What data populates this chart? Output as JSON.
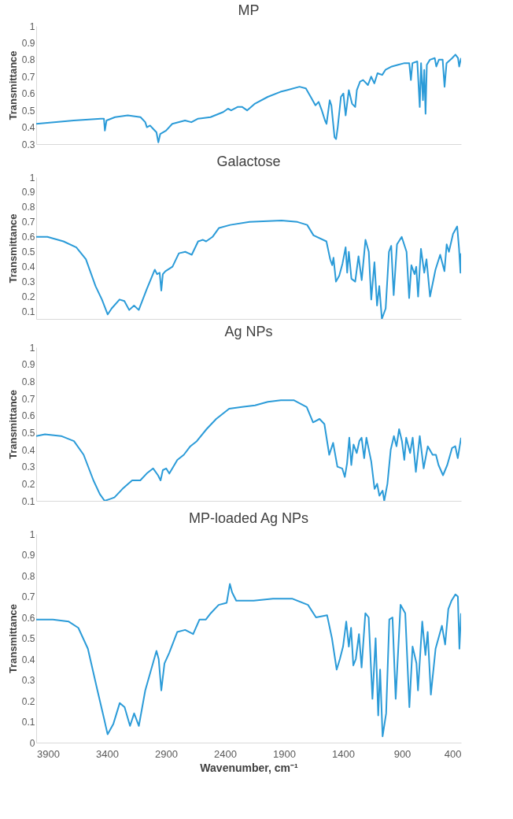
{
  "chart_data": [
    {
      "type": "line",
      "title": "MP",
      "ylabel": "Transmittance",
      "xlim": [
        4000,
        400
      ],
      "ylim": [
        0.3,
        1
      ],
      "yticks": [
        0.3,
        0.4,
        0.5,
        0.6,
        0.7,
        0.8,
        0.9,
        1
      ],
      "grid": false,
      "tick_labels": "y",
      "x": [
        4000,
        3682,
        3453,
        3426,
        3418,
        3404,
        3332,
        3224,
        3116,
        3076,
        3062,
        3035,
        3008,
        2981,
        2965,
        2949,
        2900,
        2847,
        2739,
        2685,
        2631,
        2523,
        2415,
        2375,
        2348,
        2294,
        2254,
        2213,
        2146,
        2038,
        1930,
        1876,
        1769,
        1715,
        1674,
        1634,
        1607,
        1580,
        1553,
        1540,
        1513,
        1499,
        1472,
        1459,
        1445,
        1418,
        1397,
        1378,
        1351,
        1324,
        1297,
        1283,
        1256,
        1230,
        1189,
        1162,
        1135,
        1108,
        1068,
        1041,
        987,
        933,
        879,
        839,
        825,
        812,
        771,
        750,
        739,
        723,
        712,
        701,
        690,
        664,
        623,
        610,
        588,
        556,
        540,
        523,
        475,
        448,
        426,
        416,
        400
      ],
      "series": [
        {
          "color": "#2b9bd8",
          "values": [
            0.42,
            0.44,
            0.45,
            0.45,
            0.38,
            0.44,
            0.46,
            0.47,
            0.46,
            0.43,
            0.4,
            0.41,
            0.39,
            0.37,
            0.31,
            0.36,
            0.38,
            0.42,
            0.44,
            0.43,
            0.45,
            0.46,
            0.49,
            0.51,
            0.5,
            0.52,
            0.52,
            0.5,
            0.54,
            0.58,
            0.61,
            0.62,
            0.64,
            0.63,
            0.58,
            0.53,
            0.55,
            0.5,
            0.44,
            0.42,
            0.56,
            0.53,
            0.34,
            0.33,
            0.4,
            0.58,
            0.6,
            0.47,
            0.62,
            0.54,
            0.52,
            0.62,
            0.67,
            0.68,
            0.65,
            0.7,
            0.66,
            0.72,
            0.71,
            0.74,
            0.76,
            0.77,
            0.78,
            0.78,
            0.68,
            0.78,
            0.79,
            0.52,
            0.78,
            0.56,
            0.74,
            0.48,
            0.77,
            0.8,
            0.81,
            0.76,
            0.8,
            0.8,
            0.64,
            0.78,
            0.81,
            0.83,
            0.81,
            0.76,
            0.81
          ]
        }
      ]
    },
    {
      "type": "line",
      "title": "Galactose",
      "ylabel": "Transmittance",
      "xlim": [
        4000,
        400
      ],
      "ylim": [
        0.05,
        1
      ],
      "yticks": [
        0.1,
        0.2,
        0.3,
        0.4,
        0.5,
        0.6,
        0.7,
        0.8,
        0.9,
        1
      ],
      "grid": false,
      "tick_labels": "y",
      "x": [
        4000,
        3905,
        3769,
        3660,
        3579,
        3497,
        3443,
        3394,
        3361,
        3294,
        3253,
        3212,
        3171,
        3131,
        3063,
        2995,
        2976,
        2954,
        2940,
        2927,
        2905,
        2845,
        2791,
        2737,
        2709,
        2682,
        2628,
        2587,
        2560,
        2506,
        2451,
        2356,
        2193,
        1921,
        1786,
        1704,
        1650,
        1541,
        1509,
        1492,
        1481,
        1460,
        1432,
        1405,
        1378,
        1365,
        1351,
        1329,
        1297,
        1269,
        1242,
        1210,
        1182,
        1161,
        1134,
        1112,
        1093,
        1071,
        1039,
        1011,
        992,
        971,
        943,
        903,
        862,
        840,
        821,
        794,
        780,
        764,
        740,
        712,
        693,
        663,
        617,
        577,
        541,
        522,
        503,
        468,
        433,
        417,
        405,
        400
      ],
      "series": [
        {
          "color": "#2b9bd8",
          "values": [
            0.6,
            0.6,
            0.57,
            0.53,
            0.45,
            0.27,
            0.18,
            0.08,
            0.12,
            0.18,
            0.17,
            0.11,
            0.14,
            0.11,
            0.25,
            0.38,
            0.35,
            0.36,
            0.24,
            0.35,
            0.37,
            0.4,
            0.49,
            0.5,
            0.49,
            0.48,
            0.57,
            0.58,
            0.57,
            0.6,
            0.66,
            0.68,
            0.7,
            0.71,
            0.7,
            0.68,
            0.61,
            0.57,
            0.45,
            0.41,
            0.46,
            0.3,
            0.34,
            0.42,
            0.53,
            0.36,
            0.5,
            0.32,
            0.3,
            0.47,
            0.31,
            0.58,
            0.5,
            0.18,
            0.43,
            0.14,
            0.27,
            0.05,
            0.12,
            0.5,
            0.54,
            0.21,
            0.55,
            0.6,
            0.5,
            0.19,
            0.41,
            0.35,
            0.4,
            0.2,
            0.52,
            0.36,
            0.45,
            0.2,
            0.38,
            0.48,
            0.37,
            0.55,
            0.5,
            0.62,
            0.67,
            0.52,
            0.36,
            0.49
          ]
        }
      ]
    },
    {
      "type": "line",
      "title": "Ag NPs",
      "ylabel": "Transmittance",
      "xlim": [
        4000,
        400
      ],
      "ylim": [
        0.1,
        1
      ],
      "yticks": [
        0.1,
        0.2,
        0.3,
        0.4,
        0.5,
        0.6,
        0.7,
        0.8,
        0.9,
        1
      ],
      "grid": false,
      "tick_labels": "y",
      "x": [
        4000,
        3926,
        3789,
        3680,
        3598,
        3515,
        3461,
        3420,
        3378,
        3337,
        3269,
        3187,
        3118,
        3064,
        3009,
        2968,
        2946,
        2927,
        2899,
        2872,
        2804,
        2749,
        2694,
        2639,
        2557,
        2475,
        2365,
        2256,
        2146,
        2037,
        1927,
        1818,
        1708,
        1654,
        1599,
        1558,
        1517,
        1484,
        1448,
        1407,
        1385,
        1366,
        1347,
        1330,
        1311,
        1284,
        1262,
        1243,
        1221,
        1202,
        1161,
        1133,
        1111,
        1092,
        1065,
        1051,
        1024,
        996,
        969,
        947,
        925,
        901,
        881,
        865,
        832,
        810,
        783,
        750,
        717,
        682,
        641,
        613,
        591,
        553,
        517,
        476,
        449,
        428,
        400
      ],
      "series": [
        {
          "color": "#2b9bd8",
          "values": [
            0.48,
            0.49,
            0.48,
            0.45,
            0.37,
            0.22,
            0.14,
            0.1,
            0.11,
            0.12,
            0.17,
            0.22,
            0.22,
            0.26,
            0.29,
            0.25,
            0.22,
            0.28,
            0.29,
            0.26,
            0.34,
            0.37,
            0.42,
            0.45,
            0.52,
            0.58,
            0.64,
            0.65,
            0.66,
            0.68,
            0.69,
            0.69,
            0.65,
            0.56,
            0.58,
            0.55,
            0.37,
            0.44,
            0.3,
            0.29,
            0.24,
            0.32,
            0.47,
            0.31,
            0.43,
            0.38,
            0.45,
            0.47,
            0.35,
            0.47,
            0.33,
            0.17,
            0.2,
            0.13,
            0.16,
            0.1,
            0.2,
            0.4,
            0.48,
            0.42,
            0.52,
            0.45,
            0.34,
            0.47,
            0.38,
            0.47,
            0.27,
            0.48,
            0.29,
            0.42,
            0.37,
            0.37,
            0.31,
            0.25,
            0.31,
            0.41,
            0.42,
            0.35,
            0.47
          ]
        }
      ]
    },
    {
      "type": "line",
      "title": "MP-loaded Ag NPs",
      "ylabel": "Transmittance",
      "xlabel": "Wavenumber, cm⁻¹",
      "xlim": [
        4000,
        400
      ],
      "xticks": [
        3900,
        3400,
        2900,
        2400,
        1900,
        1400,
        900,
        400
      ],
      "ylim": [
        0,
        1
      ],
      "yticks": [
        0,
        0.1,
        0.2,
        0.3,
        0.4,
        0.5,
        0.6,
        0.7,
        0.8,
        0.9,
        1
      ],
      "grid": false,
      "x": [
        4000,
        3859,
        3724,
        3643,
        3562,
        3481,
        3427,
        3395,
        3346,
        3292,
        3251,
        3205,
        3170,
        3130,
        3076,
        2981,
        2962,
        2940,
        2913,
        2873,
        2805,
        2738,
        2670,
        2616,
        2562,
        2521,
        2454,
        2386,
        2359,
        2340,
        2305,
        2157,
        1994,
        1832,
        1697,
        1629,
        1535,
        1494,
        1454,
        1427,
        1400,
        1373,
        1351,
        1332,
        1313,
        1292,
        1265,
        1243,
        1211,
        1183,
        1151,
        1124,
        1102,
        1086,
        1065,
        1035,
        1008,
        981,
        954,
        913,
        873,
        838,
        811,
        778,
        765,
        729,
        702,
        683,
        656,
        616,
        562,
        535,
        508,
        481,
        448,
        427,
        414,
        400
      ],
      "series": [
        {
          "color": "#2b9bd8",
          "values": [
            0.59,
            0.59,
            0.58,
            0.55,
            0.45,
            0.25,
            0.12,
            0.04,
            0.09,
            0.19,
            0.17,
            0.08,
            0.14,
            0.08,
            0.25,
            0.44,
            0.4,
            0.25,
            0.38,
            0.43,
            0.53,
            0.54,
            0.52,
            0.59,
            0.59,
            0.62,
            0.66,
            0.67,
            0.76,
            0.72,
            0.68,
            0.68,
            0.69,
            0.69,
            0.66,
            0.6,
            0.61,
            0.5,
            0.35,
            0.4,
            0.46,
            0.58,
            0.46,
            0.55,
            0.37,
            0.4,
            0.52,
            0.36,
            0.62,
            0.6,
            0.21,
            0.5,
            0.13,
            0.35,
            0.03,
            0.14,
            0.59,
            0.6,
            0.21,
            0.66,
            0.62,
            0.17,
            0.46,
            0.38,
            0.25,
            0.58,
            0.42,
            0.53,
            0.23,
            0.45,
            0.56,
            0.47,
            0.64,
            0.68,
            0.71,
            0.7,
            0.45,
            0.62
          ]
        }
      ]
    }
  ]
}
